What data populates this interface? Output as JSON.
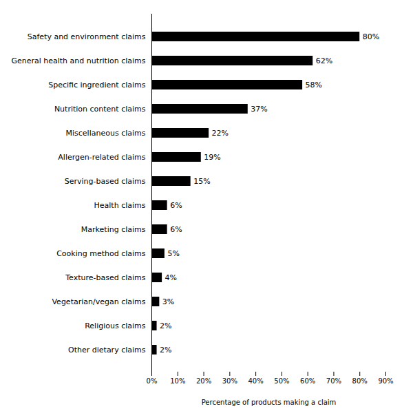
{
  "chart_data": {
    "type": "bar",
    "orientation": "horizontal",
    "categories": [
      "Safety and environment claims",
      "General health and nutrition claims",
      "Specific ingredient claims",
      "Nutrition content claims",
      "Miscellaneous claims",
      "Allergen-related claims",
      "Serving-based claims",
      "Health claims",
      "Marketing claims",
      "Cooking method claims",
      "Texture-based claims",
      "Vegetarian/vegan claims",
      "Religious claims",
      "Other dietary claims"
    ],
    "values": [
      80,
      62,
      58,
      37,
      22,
      19,
      15,
      6,
      6,
      5,
      4,
      3,
      2,
      2
    ],
    "value_labels": [
      "80%",
      "62%",
      "58%",
      "37%",
      "22%",
      "19%",
      "15%",
      "6%",
      "6%",
      "5%",
      "4%",
      "3%",
      "2%",
      "2%"
    ],
    "data_labels": true,
    "color": "#000000",
    "xlabel": "Percentage of products making a claim",
    "xlim": [
      0,
      90
    ],
    "xticks": [
      {
        "value": 0,
        "label": "0%"
      },
      {
        "value": 10,
        "label": "10%"
      },
      {
        "value": 20,
        "label": "20%"
      },
      {
        "value": 30,
        "label": "30%"
      },
      {
        "value": 40,
        "label": "40%"
      },
      {
        "value": 50,
        "label": "50%"
      },
      {
        "value": 60,
        "label": "60%"
      },
      {
        "value": 70,
        "label": "70%"
      },
      {
        "value": 80,
        "label": "80%"
      },
      {
        "value": 90,
        "label": "90%"
      }
    ],
    "grid": false
  }
}
